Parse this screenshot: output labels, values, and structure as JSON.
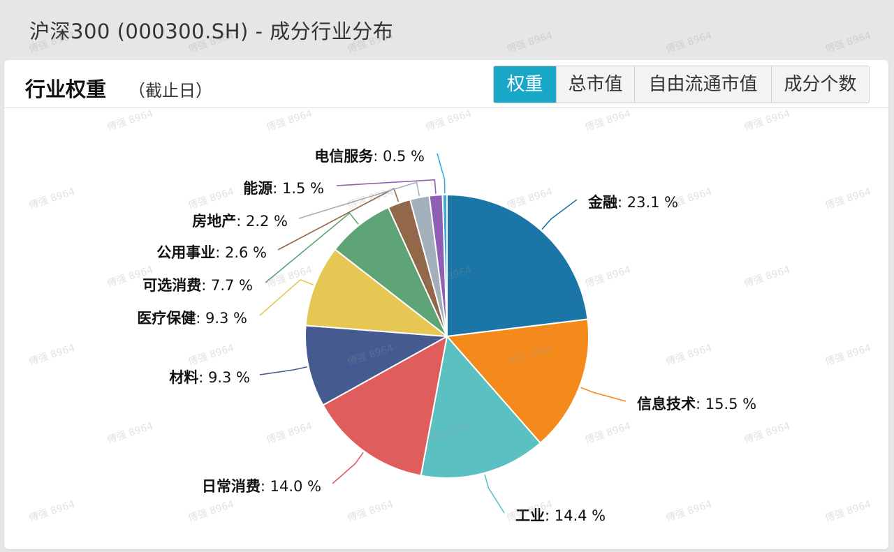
{
  "page": {
    "title": "沪深300 (000300.SH) - 成分行业分布"
  },
  "header": {
    "title": "行业权重",
    "subtitle": "（截止日）"
  },
  "tabs": [
    {
      "label": "权重",
      "active": true
    },
    {
      "label": "总市值",
      "active": false
    },
    {
      "label": "自由流通市值",
      "active": false
    },
    {
      "label": "成分个数",
      "active": false
    }
  ],
  "watermark": {
    "text": "傅强 8964"
  },
  "colors": {
    "accent": "#19a7c8"
  },
  "chart_data": {
    "type": "pie",
    "unit": "%",
    "slices": [
      {
        "name": "金融",
        "value": 23.1,
        "display": "23.1 %",
        "color": "#1b75a6"
      },
      {
        "name": "信息技术",
        "value": 15.5,
        "display": "15.5 %",
        "color": "#f58a1c"
      },
      {
        "name": "工业",
        "value": 14.4,
        "display": "14.4 %",
        "color": "#5bc0c2"
      },
      {
        "name": "日常消费",
        "value": 14.0,
        "display": "14.0 %",
        "color": "#e05d5d"
      },
      {
        "name": "材料",
        "value": 9.3,
        "display": "9.3 %",
        "color": "#465a92"
      },
      {
        "name": "医疗保健",
        "value": 9.3,
        "display": "9.3 %",
        "color": "#e6c754"
      },
      {
        "name": "可选消费",
        "value": 7.7,
        "display": "7.7 %",
        "color": "#5ea476"
      },
      {
        "name": "公用事业",
        "value": 2.6,
        "display": "2.6 %",
        "color": "#93674a"
      },
      {
        "name": "房地产",
        "value": 2.2,
        "display": "2.2 %",
        "color": "#a3b0bb"
      },
      {
        "name": "能源",
        "value": 1.5,
        "display": "1.5 %",
        "color": "#8e5fb4"
      },
      {
        "name": "电信服务",
        "value": 0.5,
        "display": "0.5 %",
        "color": "#3aa9dd"
      }
    ]
  }
}
